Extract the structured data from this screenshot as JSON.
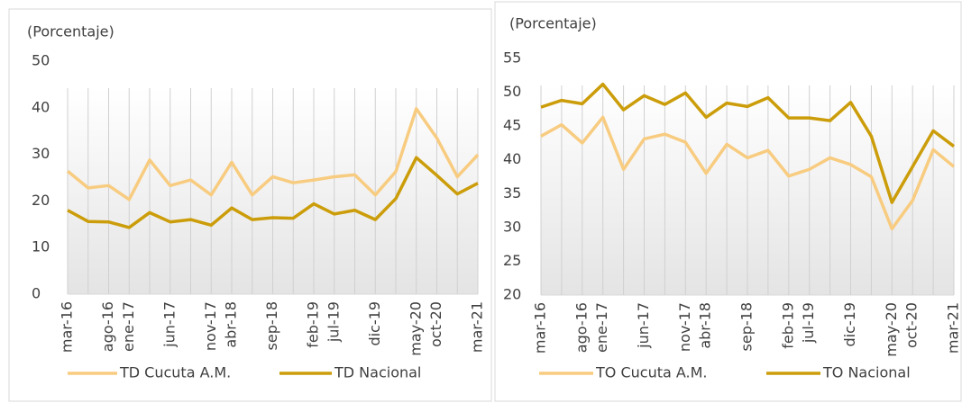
{
  "chart_data": [
    {
      "type": "line",
      "y_axis_label": "(Porcentaje)",
      "categories": [
        "mar-16",
        null,
        "ago-16",
        "ene-17",
        null,
        "jun-17",
        null,
        "nov-17",
        "abr-18",
        null,
        "sep-18",
        null,
        "feb-19",
        "jul-19",
        null,
        "dic-19",
        null,
        "may-20",
        "oct-20",
        null,
        "mar-21"
      ],
      "series": [
        {
          "name": "TD Cucuta A.M.",
          "color": "#f8cc80",
          "values": [
            26.4,
            22.8,
            23.3,
            20.3,
            28.8,
            23.3,
            24.5,
            21.3,
            28.3,
            21.3,
            25.2,
            23.9,
            24.5,
            25.2,
            25.6,
            21.3,
            26.3,
            39.8,
            33.5,
            25.2,
            29.9
          ]
        },
        {
          "name": "TD Nacional",
          "color": "#cc9d0a",
          "values": [
            18.0,
            15.6,
            15.5,
            14.3,
            17.5,
            15.5,
            16.0,
            14.8,
            18.5,
            16.0,
            16.4,
            16.3,
            19.4,
            17.2,
            18.0,
            16.0,
            20.5,
            29.3,
            25.5,
            21.5,
            23.8
          ]
        }
      ],
      "ylim": [
        0,
        50
      ],
      "yticks": [
        0,
        10,
        20,
        30,
        40,
        50
      ],
      "grid": true,
      "legend": "bottom"
    },
    {
      "type": "line",
      "y_axis_label": "(Porcentaje)",
      "categories": [
        "mar-16",
        null,
        "ago-16",
        "ene-17",
        null,
        "jun-17",
        null,
        "nov-17",
        "abr-18",
        null,
        "sep-18",
        null,
        "feb-19",
        "jul-19",
        null,
        "dic-19",
        null,
        "may-20",
        "oct-20",
        null,
        "mar-21"
      ],
      "series": [
        {
          "name": "TO Cucuta A.M.",
          "color": "#f8cc80",
          "values": [
            43.5,
            45.2,
            42.5,
            46.3,
            38.6,
            43.1,
            43.8,
            42.6,
            38.0,
            42.3,
            40.3,
            41.4,
            37.6,
            38.6,
            40.3,
            39.3,
            37.5,
            29.8,
            34.0,
            41.5,
            39.0
          ]
        },
        {
          "name": "TO Nacional",
          "color": "#cc9d0a",
          "values": [
            47.8,
            48.8,
            48.3,
            51.2,
            47.4,
            49.5,
            48.2,
            49.9,
            46.3,
            48.4,
            47.9,
            49.2,
            46.2,
            46.2,
            45.8,
            48.5,
            43.5,
            33.7,
            39.0,
            44.3,
            42.0
          ]
        }
      ],
      "ylim": [
        20,
        55
      ],
      "yticks": [
        20,
        25,
        30,
        35,
        40,
        45,
        50,
        55
      ],
      "grid": true,
      "legend": "bottom"
    }
  ]
}
